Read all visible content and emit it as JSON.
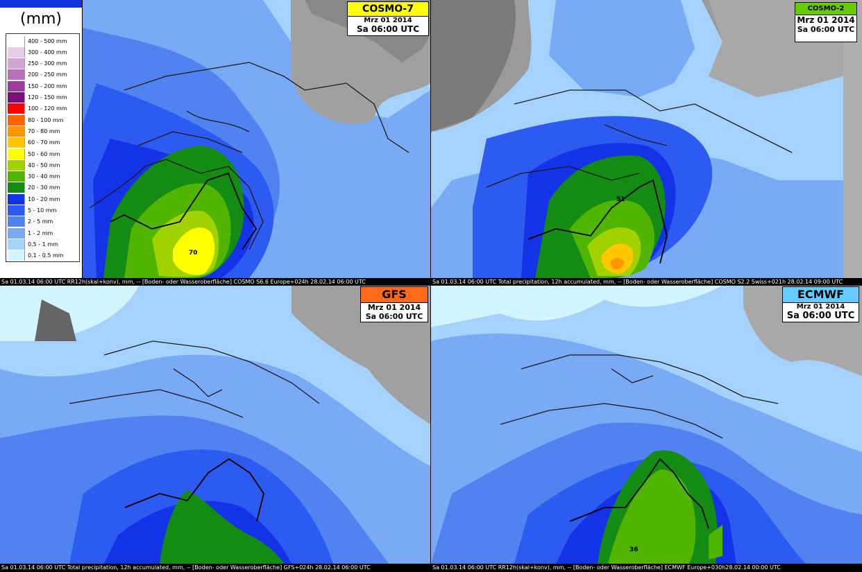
{
  "legend": {
    "unit": "(mm)",
    "items": [
      {
        "label": "400 - 500 mm",
        "color": "#ffffff"
      },
      {
        "label": "300 - 400 mm",
        "color": "#e8cce8"
      },
      {
        "label": "250 - 300 mm",
        "color": "#d4a4d4"
      },
      {
        "label": "200 - 250 mm",
        "color": "#b870b8"
      },
      {
        "label": "150 - 200 mm",
        "color": "#9c3c9c"
      },
      {
        "label": "120 - 150 mm",
        "color": "#7a1078"
      },
      {
        "label": "100 - 120 mm",
        "color": "#ff0000"
      },
      {
        "label": "80 - 100 mm",
        "color": "#ff6400"
      },
      {
        "label": "70 - 80 mm",
        "color": "#ff9600"
      },
      {
        "label": "60 - 70 mm",
        "color": "#ffc800"
      },
      {
        "label": "50 - 60 mm",
        "color": "#ffff00"
      },
      {
        "label": "40 - 50 mm",
        "color": "#a0d200"
      },
      {
        "label": "30 - 40 mm",
        "color": "#50b400"
      },
      {
        "label": "20 - 30 mm",
        "color": "#148c14"
      },
      {
        "label": "10 - 20 mm",
        "color": "#1432e6"
      },
      {
        "label": "5 - 10 mm",
        "color": "#2d5af0"
      },
      {
        "label": "2 - 5 mm",
        "color": "#5082f0"
      },
      {
        "label": "1 - 2 mm",
        "color": "#78aaf5"
      },
      {
        "label": "0.5 - 1 mm",
        "color": "#a5d2fa"
      },
      {
        "label": "0.1 - 0.5 mm",
        "color": "#d2f5ff"
      }
    ]
  },
  "panels": [
    {
      "model": "COSMO-7",
      "model_color": "#ffff00",
      "date": "Mrz 01 2014",
      "time": "Sa 06:00 UTC",
      "max_value": "70",
      "footer": "Sa 01.03.14 06:00 UTC RR12h(skal+konv), mm, -- [Boden- oder Wasseroberfläche] COSMO S6.6 Europe+024h 28.02.14 06:00 UTC"
    },
    {
      "model": "COSMO-2",
      "model_color": "#66cc00",
      "date": "Mrz 01 2014",
      "time": "Sa 06:00 UTC",
      "max_value": "51",
      "footer": "Sa 01.03.14 06:00 UTC  Total precipitation, 12h accumulated, mm, -- [Boden- oder Wasseroberfläche] COSMO S2.2 Swiss+021h  28.02.14 09:00 UTC"
    },
    {
      "model": "GFS",
      "model_color": "#ff6a1a",
      "date": "Mrz 01 2014",
      "time": "Sa 06:00 UTC",
      "max_value": "",
      "footer": "Sa 01.03.14 06:00 UTC Total precipitation, 12h accumulated, mm, -- [Boden- oder Wasseroberfläche] GFS+024h  28.02.14 06:00 UTC"
    },
    {
      "model": "ECMWF",
      "model_color": "#66ccff",
      "date": "Mrz 01 2014",
      "time": "Sa 06:00 UTC",
      "max_value": "36",
      "footer": "Sa 01.03.14 06:00 UTC  RR12h(skal+konv), mm, -- [Boden- oder Wasseroberfläche] ECMWF Europe+030h28.02.14 00:00 UTC"
    }
  ]
}
